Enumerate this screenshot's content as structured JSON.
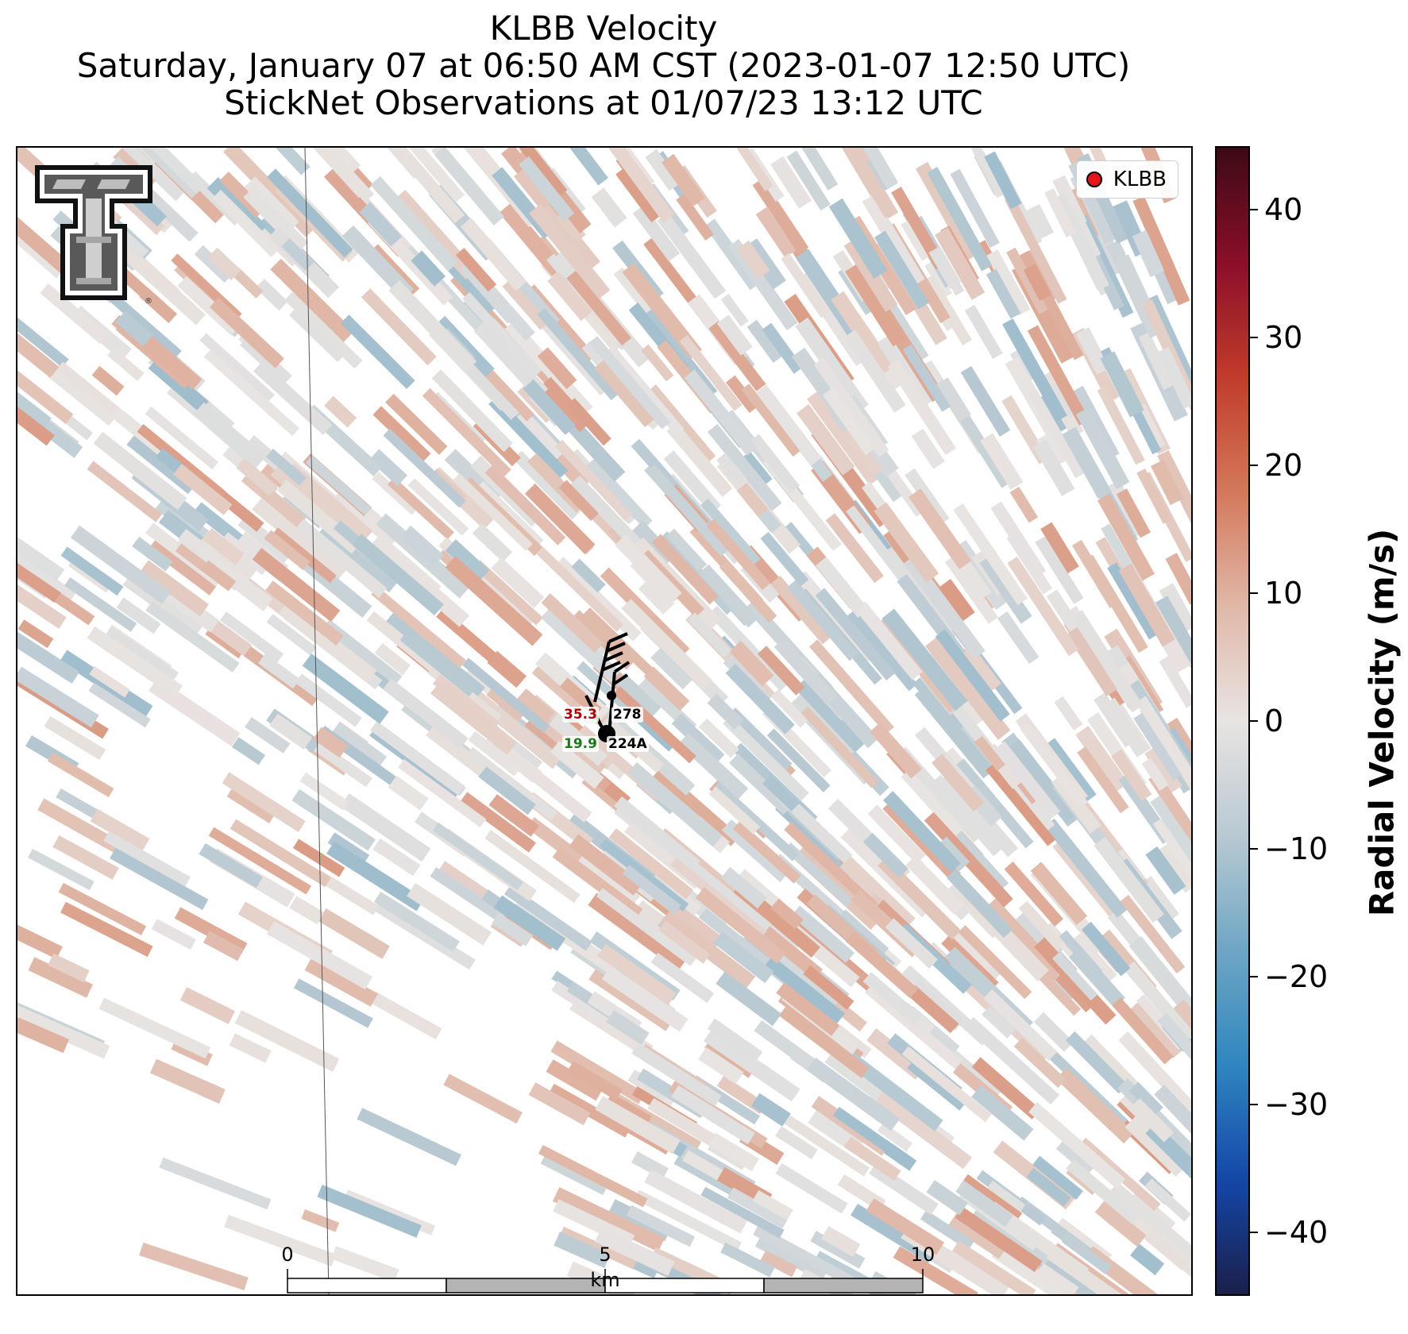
{
  "title": {
    "line1": "KLBB Velocity",
    "line2": "Saturday, January 07 at 06:50 AM CST (2023-01-07 12:50 UTC)",
    "line3": "StickNet Observations at 01/07/23 13:12 UTC"
  },
  "legend": {
    "label": "KLBB",
    "marker_color": "#e8141c"
  },
  "logo": {
    "name": "texas-tech-double-t-logo",
    "mark": "®"
  },
  "stations": [
    {
      "temp": "35.3",
      "id": "278",
      "temp_color": "#b00000"
    },
    {
      "temp": "19.9",
      "id": "224A",
      "temp_color": "#1a7a1a"
    }
  ],
  "scale_bar": {
    "ticks": [
      "0",
      "5",
      "10"
    ],
    "unit": "km"
  },
  "colorbar": {
    "title": "Radial Velocity (m/s)",
    "min": -45,
    "max": 45,
    "ticks": [
      40,
      30,
      20,
      10,
      0,
      -10,
      -20,
      -30,
      -40
    ],
    "tick_labels": [
      "40",
      "30",
      "20",
      "10",
      "0",
      "−10",
      "−20",
      "−30",
      "−40"
    ],
    "stops": [
      "#1b1f4a",
      "#1447a8",
      "#2f86c0",
      "#6ea6c4",
      "#b8c9d2",
      "#e8e4e2",
      "#e0b8a8",
      "#d4785a",
      "#c13c2a",
      "#8b0e2a",
      "#3d0a14"
    ]
  },
  "radar": {
    "velocity_range": [
      -12,
      14
    ]
  }
}
